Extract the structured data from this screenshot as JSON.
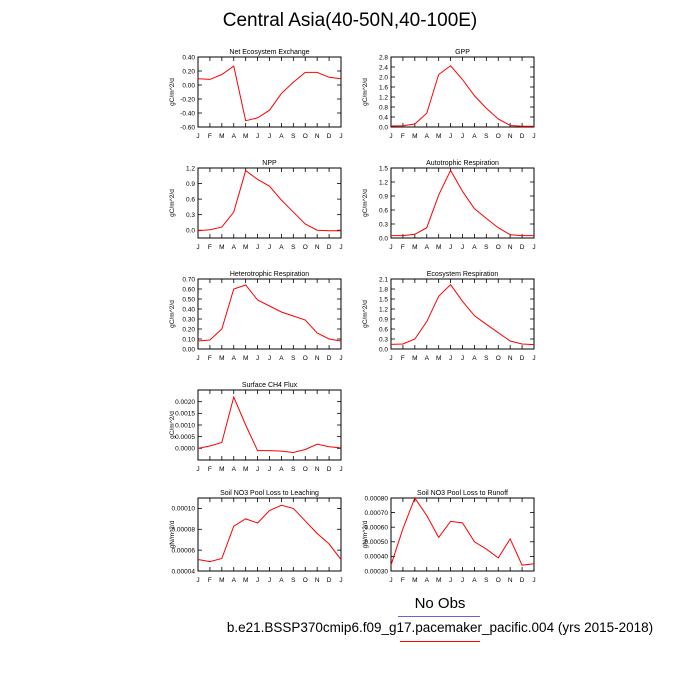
{
  "title": "Central Asia(40-50N,40-100E)",
  "legend": {
    "no_obs": "No Obs",
    "case": "b.e21.BSSP370cmip6.f09_g17.pacemaker_pacific.004 (yrs 2015-2018)",
    "colors": {
      "no_obs": "#6666cc",
      "case": "#ff0000"
    }
  },
  "chart_data": [
    {
      "type": "line",
      "title": "Net Ecosystem Exchange",
      "ylabel": "gC/m^2/d",
      "x": [
        "J",
        "F",
        "M",
        "A",
        "M",
        "J",
        "J",
        "A",
        "S",
        "O",
        "N",
        "D",
        "J"
      ],
      "ylim": [
        -0.6,
        0.4
      ],
      "yticks": [
        "0.40",
        "0.20",
        "0.00",
        "-0.20",
        "-0.40",
        "-0.60"
      ],
      "series": [
        {
          "color": "#ff0000",
          "values": [
            0.09,
            0.08,
            0.15,
            0.27,
            -0.51,
            -0.47,
            -0.36,
            -0.12,
            0.04,
            0.18,
            0.18,
            0.11,
            0.09
          ]
        }
      ]
    },
    {
      "type": "line",
      "title": "GPP",
      "ylabel": "gC/m^2/d",
      "x": [
        "J",
        "F",
        "M",
        "A",
        "M",
        "J",
        "J",
        "A",
        "S",
        "O",
        "N",
        "D",
        "J"
      ],
      "ylim": [
        0,
        2.8
      ],
      "yticks": [
        "2.8",
        "2.4",
        "2.0",
        "1.6",
        "1.2",
        "0.8",
        "0.4",
        "0.0"
      ],
      "series": [
        {
          "color": "#ff0000",
          "values": [
            0.04,
            0.05,
            0.12,
            0.55,
            2.1,
            2.45,
            1.9,
            1.25,
            0.75,
            0.32,
            0.06,
            0.03,
            0.03
          ]
        }
      ]
    },
    {
      "type": "line",
      "title": "NPP",
      "ylabel": "gC/m^2/d",
      "x": [
        "J",
        "F",
        "M",
        "A",
        "M",
        "J",
        "J",
        "A",
        "S",
        "O",
        "N",
        "D",
        "J"
      ],
      "ylim": [
        -0.15,
        1.2
      ],
      "yticks": [
        "1.2",
        "0.9",
        "0.6",
        "0.3",
        "0.0"
      ],
      "series": [
        {
          "color": "#ff0000",
          "values": [
            -0.01,
            0.01,
            0.06,
            0.35,
            1.15,
            0.98,
            0.85,
            0.58,
            0.35,
            0.12,
            0.0,
            -0.01,
            -0.01
          ]
        }
      ]
    },
    {
      "type": "line",
      "title": "Autotrophic Respiration",
      "ylabel": "gC/m^2/d",
      "x": [
        "J",
        "F",
        "M",
        "A",
        "M",
        "J",
        "J",
        "A",
        "S",
        "O",
        "N",
        "D",
        "J"
      ],
      "ylim": [
        0,
        1.5
      ],
      "yticks": [
        "1.5",
        "1.2",
        "0.9",
        "0.6",
        "0.3",
        "0.0"
      ],
      "series": [
        {
          "color": "#ff0000",
          "values": [
            0.05,
            0.05,
            0.08,
            0.22,
            0.92,
            1.45,
            1.0,
            0.63,
            0.42,
            0.22,
            0.07,
            0.05,
            0.05
          ]
        }
      ]
    },
    {
      "type": "line",
      "title": "Heterotrophic Respiration",
      "ylabel": "gC/m^2/d",
      "x": [
        "J",
        "F",
        "M",
        "A",
        "M",
        "J",
        "J",
        "A",
        "S",
        "O",
        "N",
        "D",
        "J"
      ],
      "ylim": [
        0,
        0.7
      ],
      "yticks": [
        "0.70",
        "0.60",
        "0.50",
        "0.40",
        "0.30",
        "0.20",
        "0.10",
        "0.00"
      ],
      "series": [
        {
          "color": "#ff0000",
          "values": [
            0.08,
            0.09,
            0.2,
            0.6,
            0.64,
            0.49,
            0.43,
            0.37,
            0.33,
            0.29,
            0.16,
            0.1,
            0.08
          ]
        }
      ]
    },
    {
      "type": "line",
      "title": "Ecosystem Respiration",
      "ylabel": "gC/m^2/d",
      "x": [
        "J",
        "F",
        "M",
        "A",
        "M",
        "J",
        "J",
        "A",
        "S",
        "O",
        "N",
        "D",
        "J"
      ],
      "ylim": [
        0,
        2.1
      ],
      "yticks": [
        "2.1",
        "1.8",
        "1.5",
        "1.2",
        "0.9",
        "0.6",
        "0.3",
        "0.0"
      ],
      "series": [
        {
          "color": "#ff0000",
          "values": [
            0.14,
            0.15,
            0.3,
            0.82,
            1.58,
            1.93,
            1.43,
            1.0,
            0.74,
            0.49,
            0.24,
            0.15,
            0.13
          ]
        }
      ]
    },
    {
      "type": "line",
      "title": "Surface CH4 Flux",
      "ylabel": "gC/m^2/d",
      "x": [
        "J",
        "F",
        "M",
        "A",
        "M",
        "J",
        "J",
        "A",
        "S",
        "O",
        "N",
        "D",
        "J"
      ],
      "ylim": [
        -0.0005,
        0.0025
      ],
      "yticks": [
        "0.0020",
        "0.0015",
        "0.0010",
        "0.0005",
        "0.0000"
      ],
      "series": [
        {
          "color": "#ff0000",
          "values": [
            0.0,
            0.0001,
            0.00025,
            0.0022,
            0.001,
            -0.0001,
            -0.0001,
            -0.00012,
            -0.00018,
            -5e-05,
            0.00018,
            7e-05,
            2e-05
          ]
        }
      ]
    },
    {
      "type": "line",
      "title": "Soil NO3 Pool Loss to Leaching",
      "ylabel": "gN/m^2/d",
      "x": [
        "J",
        "F",
        "M",
        "A",
        "M",
        "J",
        "J",
        "A",
        "S",
        "O",
        "N",
        "D",
        "J"
      ],
      "ylim": [
        4e-05,
        0.00011
      ],
      "yticks": [
        "0.00010",
        "0.00008",
        "0.00006",
        "0.00004"
      ],
      "series": [
        {
          "color": "#ff0000",
          "values": [
            5.1e-05,
            4.9e-05,
            5.2e-05,
            8.3e-05,
            9e-05,
            8.6e-05,
            9.8e-05,
            0.000103,
            0.0001,
            8.8e-05,
            7.6e-05,
            6.6e-05,
            5.1e-05
          ]
        }
      ]
    },
    {
      "type": "line",
      "title": "Soil NO3 Pool Loss to Runoff",
      "ylabel": "gN/m^2/d",
      "x": [
        "J",
        "F",
        "M",
        "A",
        "M",
        "J",
        "J",
        "A",
        "S",
        "O",
        "N",
        "D",
        "J"
      ],
      "ylim": [
        0.0003,
        0.0008
      ],
      "yticks": [
        "0.00080",
        "0.00070",
        "0.00060",
        "0.00050",
        "0.00040",
        "0.00030"
      ],
      "series": [
        {
          "color": "#ff0000",
          "values": [
            0.00034,
            0.00059,
            0.0008,
            0.00068,
            0.00053,
            0.00064,
            0.00063,
            0.0005,
            0.00045,
            0.00039,
            0.00052,
            0.00034,
            0.00035
          ]
        }
      ]
    }
  ]
}
